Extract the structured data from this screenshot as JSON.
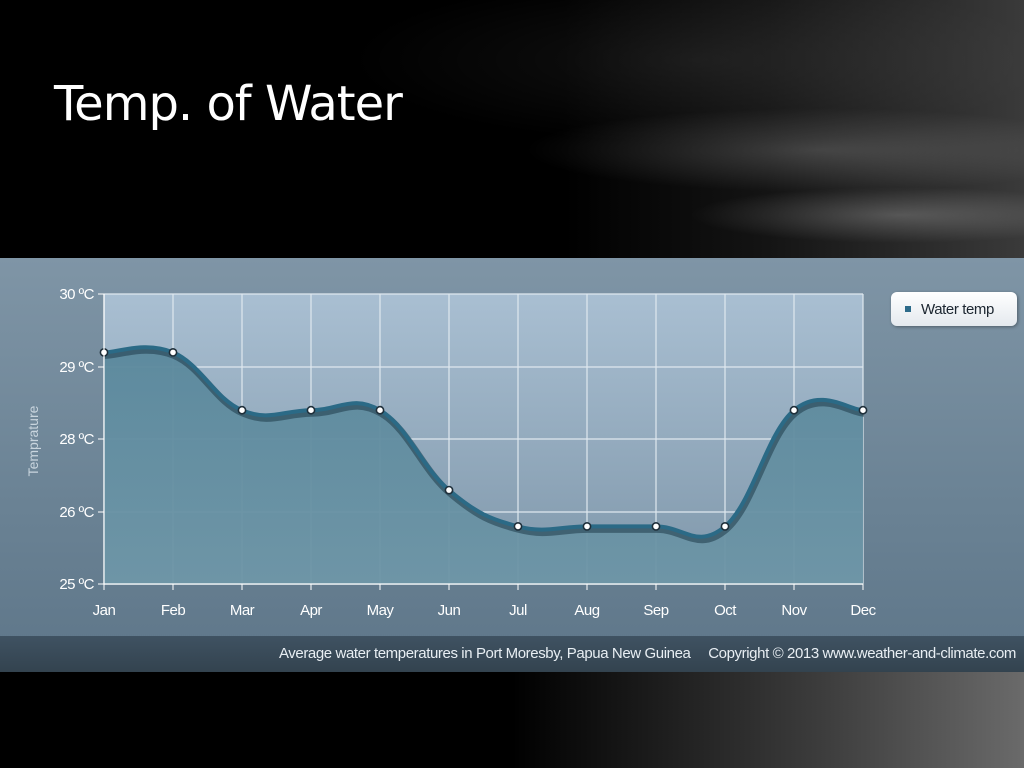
{
  "slide": {
    "title": "Temp. of Water"
  },
  "colors": {
    "line": "#2b6a86",
    "area": "#5a889c",
    "plot_bg_top": "#a9bfd2",
    "plot_bg_bottom": "#7f97aa",
    "grid": "#dfe8ef",
    "marker_fill": "#ffffff",
    "marker_stroke": "#1f2f3a"
  },
  "chart_data": {
    "type": "area",
    "categories": [
      "Jan",
      "Feb",
      "Mar",
      "Apr",
      "May",
      "Jun",
      "Jul",
      "Aug",
      "Sep",
      "Oct",
      "Nov",
      "Dec"
    ],
    "series": [
      {
        "name": "Water temp",
        "values": [
          29.2,
          29.2,
          28.4,
          28.4,
          28.4,
          26.6,
          25.8,
          25.8,
          25.8,
          25.8,
          28.4,
          28.4
        ]
      }
    ],
    "yticks": [
      {
        "label": "30 ºC",
        "value": 30
      },
      {
        "label": "29 ºC",
        "value": 29
      },
      {
        "label": "28 ºC",
        "value": 28
      },
      {
        "label": "26 ºC",
        "value": 26
      },
      {
        "label": "25 ºC",
        "value": 25
      }
    ],
    "ylabel": "Temprature",
    "xlabel": "",
    "legend": "top-right",
    "grid": true
  },
  "caption": {
    "text": "Average water temperatures in Port Moresby, Papua New Guinea",
    "copyright": "Copyright © 2013 www.weather-and-climate.com"
  }
}
